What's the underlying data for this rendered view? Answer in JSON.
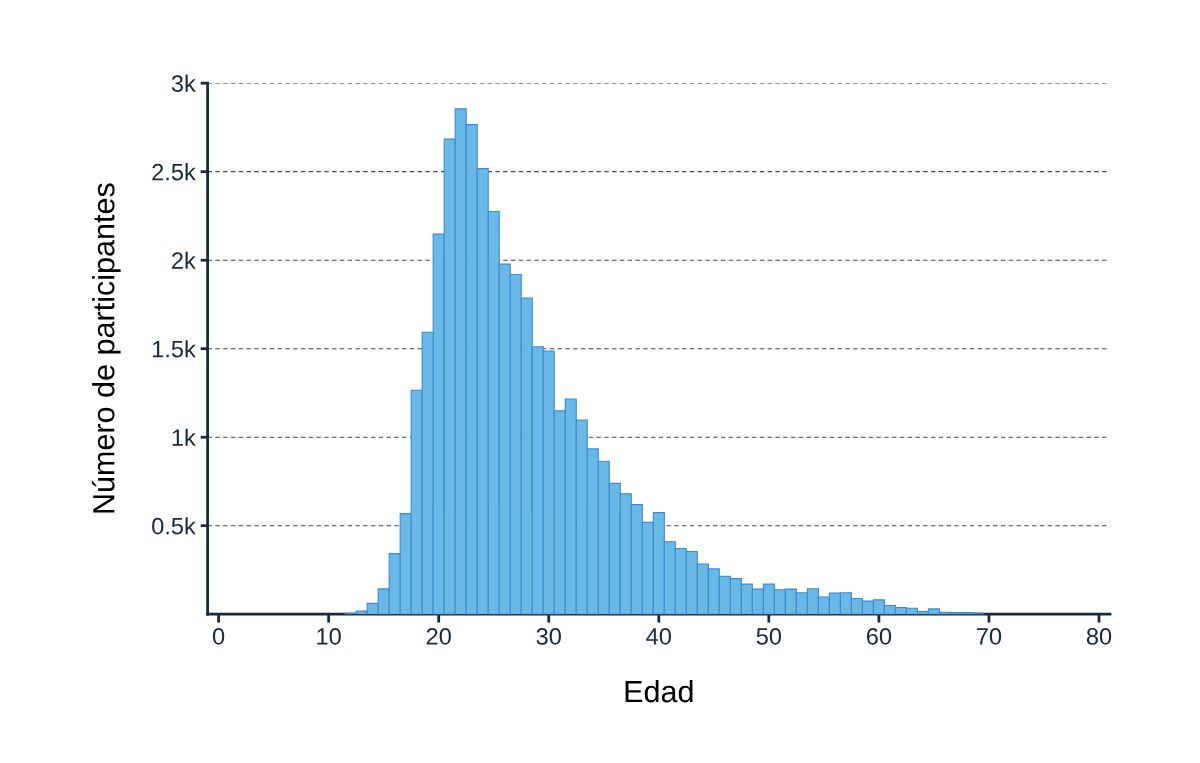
{
  "chart_data": {
    "type": "histogram",
    "xlabel": "Edad",
    "ylabel": "Número de participantes",
    "bins": [
      11.5,
      12.5,
      13.5,
      14.5,
      15.5,
      16.5,
      17.5,
      18.5,
      19.5,
      20.5,
      21.5,
      22.5,
      23.5,
      24.5,
      25.5,
      26.5,
      27.5,
      28.5,
      29.5,
      30.5,
      31.5,
      32.5,
      33.5,
      34.5,
      35.5,
      36.5,
      37.5,
      38.5,
      39.5,
      40.5,
      41.5,
      42.5,
      43.5,
      44.5,
      45.5,
      46.5,
      47.5,
      48.5,
      49.5,
      50.5,
      51.5,
      52.5,
      53.5,
      54.5,
      55.5,
      56.5,
      57.5,
      58.5,
      59.5,
      60.5,
      61.5,
      62.5,
      63.5,
      64.5,
      65.5,
      66.5,
      67.5,
      68.5,
      69.5
    ],
    "values": [
      5,
      18,
      61,
      143,
      342,
      568,
      1265,
      1593,
      2147,
      2684,
      2855,
      2766,
      2517,
      2275,
      1978,
      1919,
      1786,
      1511,
      1487,
      1149,
      1216,
      1097,
      934,
      864,
      739,
      680,
      619,
      519,
      574,
      409,
      371,
      354,
      284,
      256,
      214,
      201,
      170,
      142,
      170,
      138,
      142,
      121,
      144,
      97,
      119,
      121,
      89,
      74,
      81,
      49,
      38,
      34,
      15,
      30,
      11,
      9,
      9,
      6
    ],
    "color": "#6ab8e6",
    "xlim": [
      -1,
      81
    ],
    "xticks": [
      0,
      10,
      20,
      30,
      40,
      50,
      60,
      70,
      80
    ],
    "ylim": [
      0,
      3000
    ],
    "yticks": [
      {
        "value": 500,
        "label": "0.5k"
      },
      {
        "value": 1000,
        "label": "1k"
      },
      {
        "value": 1500,
        "label": "1.5k"
      },
      {
        "value": 2000,
        "label": "2k"
      },
      {
        "value": 2500,
        "label": "2.5k"
      },
      {
        "value": 3000,
        "label": "3k"
      }
    ],
    "grid": "y"
  }
}
